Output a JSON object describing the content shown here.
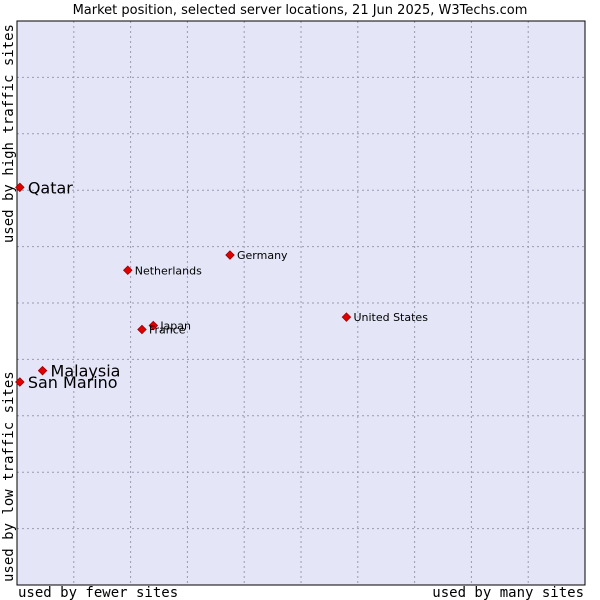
{
  "chart_data": {
    "type": "scatter",
    "title": "Market position, selected server locations, 21 Jun 2025, W3Techs.com",
    "xlabel_left": "used by fewer sites",
    "xlabel_right": "used by many sites",
    "ylabel_bottom": "used by low traffic sites",
    "ylabel_top": "used by high traffic sites",
    "xlim": [
      0,
      100
    ],
    "ylim": [
      0,
      100
    ],
    "grid": true,
    "background": "#e4e6f8",
    "marker_color": "#e00000",
    "points": [
      {
        "name": "Qatar",
        "x": 0.5,
        "y": 70.5,
        "label_size": "large"
      },
      {
        "name": "Germany",
        "x": 37.5,
        "y": 58.5,
        "label_size": "small"
      },
      {
        "name": "Netherlands",
        "x": 19.5,
        "y": 55.8,
        "label_size": "small"
      },
      {
        "name": "United States",
        "x": 58.0,
        "y": 47.5,
        "label_size": "small"
      },
      {
        "name": "Japan",
        "x": 24.0,
        "y": 46.0,
        "label_size": "small"
      },
      {
        "name": "France",
        "x": 22.0,
        "y": 45.3,
        "label_size": "small"
      },
      {
        "name": "Malaysia",
        "x": 4.5,
        "y": 38.0,
        "label_size": "large"
      },
      {
        "name": "San Marino",
        "x": 0.5,
        "y": 36.0,
        "label_size": "large"
      }
    ]
  }
}
